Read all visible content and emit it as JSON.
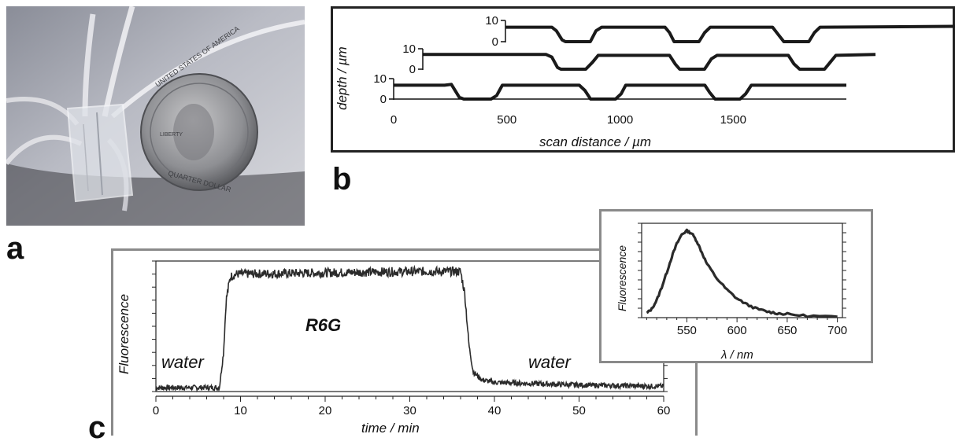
{
  "panels": {
    "a": "a",
    "b": "b",
    "c": "c"
  },
  "photo": {
    "coin_rim_text": "UNITED STATES OF AMERICA",
    "coin_word": "LIBERTY",
    "coin_bottom": "QUARTER DOLLAR"
  },
  "chart_data": [
    {
      "type": "line",
      "panel": "b",
      "xlabel": "scan distance  /  µm",
      "ylabel": "depth  /  µm",
      "x_ticks": [
        "0",
        "500",
        "1000",
        "1500"
      ],
      "xlim": [
        0,
        2000
      ],
      "y_ticks": [
        "0",
        "10"
      ],
      "series": [
        {
          "values": [
            [
              0,
              8
            ],
            [
              225,
              8
            ],
            [
              255,
              8.5
            ],
            [
              290,
              1
            ],
            [
              310,
              0
            ],
            [
              430,
              0
            ],
            [
              455,
              2
            ],
            [
              480,
              8
            ],
            [
              820,
              8
            ],
            [
              845,
              5
            ],
            [
              870,
              0
            ],
            [
              980,
              0
            ],
            [
              1005,
              3
            ],
            [
              1025,
              8
            ],
            [
              1375,
              8
            ],
            [
              1395,
              4
            ],
            [
              1420,
              0
            ],
            [
              1530,
              0
            ],
            [
              1555,
              3
            ],
            [
              1580,
              8
            ],
            [
              2000,
              8
            ]
          ]
        },
        {
          "values": [
            [
              0,
              8.5
            ],
            [
              545,
              8.5
            ],
            [
              570,
              7
            ],
            [
              595,
              1
            ],
            [
              610,
              0
            ],
            [
              720,
              0
            ],
            [
              750,
              4
            ],
            [
              775,
              8
            ],
            [
              1090,
              8
            ],
            [
              1115,
              3
            ],
            [
              1135,
              0
            ],
            [
              1245,
              0
            ],
            [
              1275,
              6
            ],
            [
              1300,
              8
            ],
            [
              1615,
              8
            ],
            [
              1640,
              3
            ],
            [
              1665,
              0
            ],
            [
              1775,
              0
            ],
            [
              1800,
              4
            ],
            [
              1825,
              8
            ],
            [
              2000,
              8.5
            ]
          ]
        },
        {
          "values": [
            [
              0,
              8
            ],
            [
              205,
              8
            ],
            [
              225,
              6
            ],
            [
              250,
              1
            ],
            [
              265,
              0
            ],
            [
              375,
              0
            ],
            [
              400,
              6
            ],
            [
              425,
              8
            ],
            [
              705,
              8
            ],
            [
              725,
              5
            ],
            [
              745,
              0
            ],
            [
              855,
              0
            ],
            [
              880,
              5
            ],
            [
              905,
              8
            ],
            [
              1180,
              8
            ],
            [
              1205,
              4
            ],
            [
              1230,
              0
            ],
            [
              1340,
              0
            ],
            [
              1365,
              5
            ],
            [
              1390,
              8
            ],
            [
              2000,
              8.5
            ]
          ]
        }
      ]
    },
    {
      "type": "line",
      "panel": "c",
      "xlabel": "time  /  min",
      "ylabel": "Fluorescence",
      "x_ticks": [
        "0",
        "10",
        "20",
        "30",
        "40",
        "50",
        "60"
      ],
      "xlim": [
        0,
        60
      ],
      "ylim": [
        0,
        1
      ],
      "annotations": [
        "water",
        "R6G",
        "water"
      ],
      "series": [
        {
          "values": [
            [
              0,
              0.03
            ],
            [
              7.5,
              0.03
            ],
            [
              8.0,
              0.3
            ],
            [
              8.3,
              0.7
            ],
            [
              8.8,
              0.88
            ],
            [
              9.5,
              0.9
            ],
            [
              20,
              0.91
            ],
            [
              30,
              0.92
            ],
            [
              36.0,
              0.92
            ],
            [
              36.5,
              0.75
            ],
            [
              37.0,
              0.35
            ],
            [
              37.5,
              0.15
            ],
            [
              38.5,
              0.09
            ],
            [
              40,
              0.07
            ],
            [
              45,
              0.06
            ],
            [
              50,
              0.05
            ],
            [
              60,
              0.04
            ]
          ]
        }
      ]
    },
    {
      "type": "line",
      "panel": "c-inset",
      "xlabel": "λ  /  nm",
      "ylabel": "Fluorescence",
      "x_ticks": [
        "550",
        "600",
        "650",
        "700"
      ],
      "xlim": [
        505,
        705
      ],
      "ylim": [
        0,
        1
      ],
      "series": [
        {
          "values": [
            [
              510,
              0.05
            ],
            [
              515,
              0.1
            ],
            [
              520,
              0.2
            ],
            [
              525,
              0.35
            ],
            [
              530,
              0.52
            ],
            [
              535,
              0.7
            ],
            [
              540,
              0.85
            ],
            [
              545,
              0.96
            ],
            [
              550,
              1.0
            ],
            [
              555,
              0.97
            ],
            [
              560,
              0.88
            ],
            [
              565,
              0.75
            ],
            [
              570,
              0.62
            ],
            [
              580,
              0.45
            ],
            [
              590,
              0.32
            ],
            [
              600,
              0.22
            ],
            [
              610,
              0.15
            ],
            [
              620,
              0.1
            ],
            [
              630,
              0.07
            ],
            [
              640,
              0.05
            ],
            [
              650,
              0.04
            ],
            [
              670,
              0.02
            ],
            [
              700,
              0.01
            ]
          ]
        }
      ]
    }
  ]
}
